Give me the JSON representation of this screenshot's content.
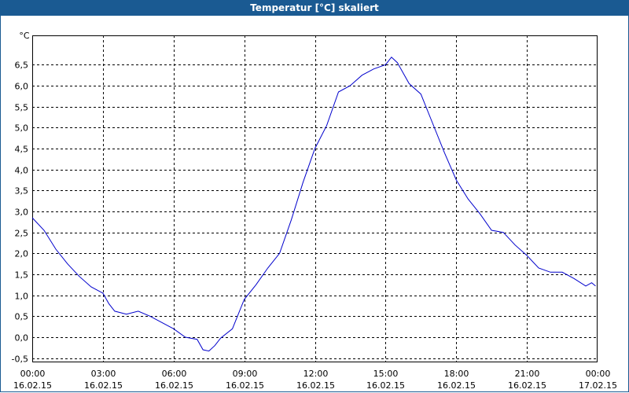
{
  "window": {
    "title": "Temperatur [°C] skaliert"
  },
  "colors": {
    "titlebar": "#1a5a92",
    "line": "#0000cc",
    "grid": "#000000"
  },
  "chart_data": {
    "type": "line",
    "unit_label": "°C",
    "grid": true,
    "grid_style": "dashed",
    "ylim": [
      -0.6,
      7.2
    ],
    "yticks": [
      {
        "v": -0.5,
        "label": "-0,5"
      },
      {
        "v": 0.0,
        "label": "0,0"
      },
      {
        "v": 0.5,
        "label": "0,5"
      },
      {
        "v": 1.0,
        "label": "1,0"
      },
      {
        "v": 1.5,
        "label": "1,5"
      },
      {
        "v": 2.0,
        "label": "2,0"
      },
      {
        "v": 2.5,
        "label": "2,5"
      },
      {
        "v": 3.0,
        "label": "3,0"
      },
      {
        "v": 3.5,
        "label": "3,5"
      },
      {
        "v": 4.0,
        "label": "4,0"
      },
      {
        "v": 4.5,
        "label": "4,5"
      },
      {
        "v": 5.0,
        "label": "5,0"
      },
      {
        "v": 5.5,
        "label": "5,5"
      },
      {
        "v": 6.0,
        "label": "6,0"
      },
      {
        "v": 6.5,
        "label": "6,5"
      }
    ],
    "xlim": [
      "16.02.15 00:00",
      "17.02.15 00:00"
    ],
    "xticks": [
      {
        "time": "00:00",
        "date": "16.02.15"
      },
      {
        "time": "03:00",
        "date": "16.02.15"
      },
      {
        "time": "06:00",
        "date": "16.02.15"
      },
      {
        "time": "09:00",
        "date": "16.02.15"
      },
      {
        "time": "12:00",
        "date": "16.02.15"
      },
      {
        "time": "15:00",
        "date": "16.02.15"
      },
      {
        "time": "18:00",
        "date": "16.02.15"
      },
      {
        "time": "21:00",
        "date": "16.02.15"
      },
      {
        "time": "00:00",
        "date": "17.02.15"
      }
    ],
    "series": [
      {
        "color": "#0000cc",
        "points": [
          [
            "16.02.15 00:00",
            2.85
          ],
          [
            "16.02.15 00:30",
            2.55
          ],
          [
            "16.02.15 01:00",
            2.1
          ],
          [
            "16.02.15 01:30",
            1.75
          ],
          [
            "16.02.15 02:00",
            1.45
          ],
          [
            "16.02.15 02:30",
            1.2
          ],
          [
            "16.02.15 03:00",
            1.05
          ],
          [
            "16.02.15 03:15",
            0.8
          ],
          [
            "16.02.15 03:30",
            0.62
          ],
          [
            "16.02.15 04:00",
            0.55
          ],
          [
            "16.02.15 04:30",
            0.62
          ],
          [
            "16.02.15 05:00",
            0.5
          ],
          [
            "16.02.15 05:30",
            0.35
          ],
          [
            "16.02.15 06:00",
            0.2
          ],
          [
            "16.02.15 06:30",
            0.0
          ],
          [
            "16.02.15 07:00",
            -0.05
          ],
          [
            "16.02.15 07:15",
            -0.3
          ],
          [
            "16.02.15 07:30",
            -0.33
          ],
          [
            "16.02.15 07:45",
            -0.2
          ],
          [
            "16.02.15 08:00",
            -0.02
          ],
          [
            "16.02.15 08:30",
            0.2
          ],
          [
            "16.02.15 09:00",
            0.9
          ],
          [
            "16.02.15 09:30",
            1.25
          ],
          [
            "16.02.15 10:00",
            1.65
          ],
          [
            "16.02.15 10:30",
            2.0
          ],
          [
            "16.02.15 11:00",
            2.8
          ],
          [
            "16.02.15 11:30",
            3.7
          ],
          [
            "16.02.15 12:00",
            4.5
          ],
          [
            "16.02.15 12:30",
            5.05
          ],
          [
            "16.02.15 13:00",
            5.85
          ],
          [
            "16.02.15 13:30",
            6.0
          ],
          [
            "16.02.15 14:00",
            6.25
          ],
          [
            "16.02.15 14:30",
            6.4
          ],
          [
            "16.02.15 15:00",
            6.5
          ],
          [
            "16.02.15 15:15",
            6.68
          ],
          [
            "16.02.15 15:30",
            6.55
          ],
          [
            "16.02.15 16:00",
            6.05
          ],
          [
            "16.02.15 16:30",
            5.8
          ],
          [
            "16.02.15 17:00",
            5.1
          ],
          [
            "16.02.15 17:30",
            4.4
          ],
          [
            "16.02.15 18:00",
            3.75
          ],
          [
            "16.02.15 18:30",
            3.3
          ],
          [
            "16.02.15 19:00",
            2.95
          ],
          [
            "16.02.15 19:30",
            2.55
          ],
          [
            "16.02.15 20:00",
            2.5
          ],
          [
            "16.02.15 20:30",
            2.2
          ],
          [
            "16.02.15 21:00",
            1.95
          ],
          [
            "16.02.15 21:30",
            1.65
          ],
          [
            "16.02.15 22:00",
            1.55
          ],
          [
            "16.02.15 22:30",
            1.55
          ],
          [
            "16.02.15 23:00",
            1.4
          ],
          [
            "16.02.15 23:30",
            1.22
          ],
          [
            "16.02.15 23:45",
            1.3
          ],
          [
            "16.02.15 23:55",
            1.22
          ]
        ]
      }
    ]
  }
}
